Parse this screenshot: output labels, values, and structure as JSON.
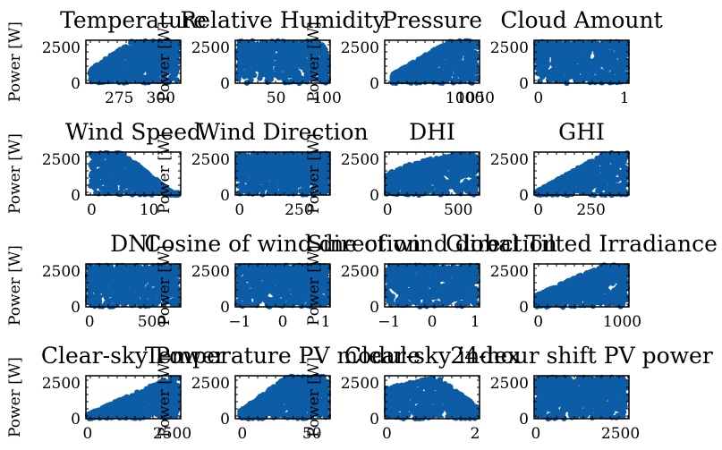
{
  "figure": {
    "series_color": "#0C5DA5"
  },
  "chart_data": [
    {
      "type": "scatter",
      "title": "Temperature",
      "ylabel": "Power [W]",
      "xlim": [
        255,
        312
      ],
      "ylim": [
        0,
        3000
      ],
      "xticks": [
        "275",
        "300"
      ],
      "yticks": [
        "0",
        "2500"
      ],
      "shape": "temp"
    },
    {
      "type": "scatter",
      "title": "Relative Humidity",
      "ylabel": "Power [W]",
      "xlim": [
        10,
        103
      ],
      "ylim": [
        0,
        3000
      ],
      "xticks": [
        "50",
        "100"
      ],
      "yticks": [
        "0",
        "2500"
      ],
      "shape": "humidity"
    },
    {
      "type": "scatter",
      "title": "Pressure",
      "ylabel": "Power [W]",
      "xlim": [
        620,
        1070
      ],
      "ylim": [
        0,
        3000
      ],
      "xticks": [
        "1000",
        "1050"
      ],
      "yticks": [
        "0",
        "2500"
      ],
      "shape": "pressure"
    },
    {
      "type": "scatter",
      "title": "Cloud Amount",
      "ylabel": "",
      "xlim": [
        -0.05,
        1.05
      ],
      "ylim": [
        0,
        3000
      ],
      "xticks": [
        "0",
        "1"
      ],
      "yticks": [
        "0",
        "2500"
      ],
      "shape": "fill"
    },
    {
      "type": "scatter",
      "title": "Wind Speed",
      "ylabel": "Power [W]",
      "xlim": [
        -1,
        15.5
      ],
      "ylim": [
        0,
        3000
      ],
      "xticks": [
        "0",
        "10"
      ],
      "yticks": [
        "0",
        "2500"
      ],
      "shape": "wind"
    },
    {
      "type": "scatter",
      "title": "Wind Direction",
      "ylabel": "Power [W]",
      "xlim": [
        -18,
        380
      ],
      "ylim": [
        0,
        3000
      ],
      "xticks": [
        "0",
        "250"
      ],
      "yticks": [
        "0",
        "2500"
      ],
      "shape": "fill"
    },
    {
      "type": "scatter",
      "title": "DHI",
      "ylabel": "Power [W]",
      "xlim": [
        -20,
        650
      ],
      "ylim": [
        0,
        3000
      ],
      "xticks": [
        "0",
        "500"
      ],
      "yticks": [
        "0",
        "2500"
      ],
      "shape": "dhi"
    },
    {
      "type": "scatter",
      "title": "GHI",
      "ylabel": "",
      "xlim": [
        -20,
        430
      ],
      "ylim": [
        0,
        3000
      ],
      "xticks": [
        "0",
        "250"
      ],
      "yticks": [
        "0",
        "2500"
      ],
      "shape": "ghi"
    },
    {
      "type": "scatter",
      "title": "DNI",
      "ylabel": "Power [W]",
      "xlim": [
        -30,
        730
      ],
      "ylim": [
        0,
        3000
      ],
      "xticks": [
        "0",
        "500"
      ],
      "yticks": [
        "0",
        "2500"
      ],
      "shape": "fill"
    },
    {
      "type": "scatter",
      "title": "Cosine of wind direction",
      "ylabel": "Power [W]",
      "xlim": [
        -1.1,
        1.1
      ],
      "ylim": [
        0,
        3000
      ],
      "xticks": [
        "−1",
        "0",
        "1"
      ],
      "yticks": [
        "0",
        "2500"
      ],
      "shape": "fill"
    },
    {
      "type": "scatter",
      "title": "Sine of wind direction",
      "ylabel": "Power [W]",
      "xlim": [
        -1.1,
        1.1
      ],
      "ylim": [
        0,
        3000
      ],
      "xticks": [
        "−1",
        "0",
        "1"
      ],
      "yticks": [
        "0",
        "2500"
      ],
      "shape": "fill"
    },
    {
      "type": "scatter",
      "title": "Global Tilted Irradiance",
      "ylabel": "",
      "xlim": [
        -50,
        1080
      ],
      "ylim": [
        0,
        3000
      ],
      "xticks": [
        "0",
        "1000"
      ],
      "yticks": [
        "0",
        "2500"
      ],
      "shape": "gti"
    },
    {
      "type": "scatter",
      "title": "Clear-sky Power",
      "ylabel": "Power [W]",
      "xlim": [
        -50,
        2750
      ],
      "ylim": [
        0,
        3000
      ],
      "xticks": [
        "0",
        "2500"
      ],
      "yticks": [
        "0",
        "2500"
      ],
      "shape": "clearsky"
    },
    {
      "type": "scatter",
      "title": "Temperature PV module",
      "ylabel": "Power [W]",
      "xlim": [
        -5,
        63
      ],
      "ylim": [
        0,
        3000
      ],
      "xticks": [
        "0",
        "50"
      ],
      "yticks": [
        "0",
        "2500"
      ],
      "shape": "pvtemp"
    },
    {
      "type": "scatter",
      "title": "Clear-sky index",
      "ylabel": "Power [W]",
      "xlim": [
        -0.05,
        2.1
      ],
      "ylim": [
        0,
        3000
      ],
      "xticks": [
        "0",
        "2"
      ],
      "yticks": [
        "0",
        "2500"
      ],
      "shape": "csi"
    },
    {
      "type": "scatter",
      "title": "24-hour shift PV power",
      "ylabel": "",
      "xlim": [
        -50,
        2750
      ],
      "ylim": [
        0,
        3000
      ],
      "xticks": [
        "0",
        "2500"
      ],
      "yticks": [
        "0",
        "2500"
      ],
      "shape": "fill"
    }
  ]
}
